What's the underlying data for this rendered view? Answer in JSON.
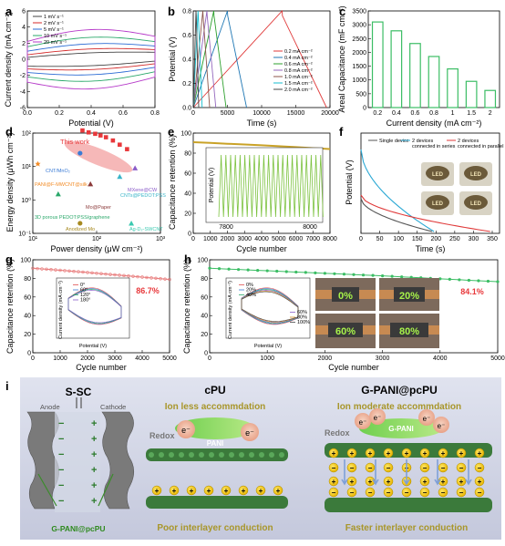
{
  "panels": {
    "a": {
      "label": "a",
      "xlabel": "Potential (V)",
      "ylabel": "Current density (mA cm⁻²)",
      "xticks": [
        "0.0",
        "0.2",
        "0.4",
        "0.6",
        "0.8"
      ],
      "yticks": [
        "-6",
        "-4",
        "-2",
        "0",
        "2",
        "4",
        "6"
      ],
      "legend": [
        "1 mV s⁻¹",
        "2 mV s⁻¹",
        "5 mV s⁻¹",
        "10 mV s⁻¹",
        "20 mV s⁻¹"
      ]
    },
    "b": {
      "label": "b",
      "xlabel": "Time (s)",
      "ylabel": "Potential (V)",
      "xticks": [
        "0",
        "5000",
        "10000",
        "15000",
        "20000"
      ],
      "yticks": [
        "0.0",
        "0.2",
        "0.4",
        "0.6",
        "0.8"
      ],
      "legend": [
        "0.2 mA cm⁻²",
        "0.4 mA cm⁻²",
        "0.6 mA cm⁻²",
        "0.8 mA cm⁻²",
        "1.0 mA cm⁻²",
        "1.5 mA cm⁻²",
        "2.0 mA cm⁻²"
      ]
    },
    "c": {
      "label": "c",
      "xlabel": "Current density (mA cm⁻²)",
      "ylabel": "Areal Capacitance (mF cm⁻²)",
      "xticks": [
        "0.2",
        "0.4",
        "0.6",
        "0.8",
        "1",
        "1.5",
        "2"
      ],
      "yticks": [
        "0",
        "500",
        "1000",
        "1500",
        "2000",
        "2500",
        "3000",
        "3500"
      ]
    },
    "d": {
      "label": "d",
      "xlabel": "Power density (μW cm⁻²)",
      "ylabel": "Energy density (μWh cm⁻²)",
      "xticks": [
        "10¹",
        "10²",
        "10³"
      ],
      "yticks": [
        "10⁻¹",
        "10⁰",
        "10¹",
        "10²"
      ],
      "highlight": "This work",
      "refs": [
        "CNT/MnO₂",
        "PANI@F-MWCNT@silk",
        "MXene@CW",
        "Mo@Paper",
        "CNTs@PEDOT:PSS",
        "3D porous PEDOT:PSS/graphene",
        "Anodized Mo",
        "Ag-D₂-SWCNT"
      ]
    },
    "e": {
      "label": "e",
      "xlabel": "Cycle number",
      "ylabel": "Capacitance retention (%)",
      "xticks": [
        "0",
        "1000",
        "2000",
        "3000",
        "4000",
        "5000",
        "6000",
        "7000",
        "8000"
      ],
      "yticks": [
        "0",
        "20",
        "40",
        "60",
        "80",
        "100"
      ],
      "inset_ylabel": "Potential (V)",
      "inset_xticks": [
        "7800",
        "8000"
      ]
    },
    "f": {
      "label": "f",
      "xlabel": "Time (s)",
      "ylabel": "Potential (V)",
      "xticks": [
        "0",
        "50",
        "100",
        "150",
        "200",
        "250",
        "300",
        "350"
      ],
      "legend": [
        "Single device",
        "2 devices connected in series",
        "2 devices connected in parallel"
      ]
    },
    "g": {
      "label": "g",
      "xlabel": "Cycle number",
      "ylabel": "Capacitance retention (%)",
      "xticks": [
        "0",
        "1000",
        "2000",
        "3000",
        "4000",
        "5000"
      ],
      "yticks": [
        "0",
        "20",
        "40",
        "60",
        "80",
        "100"
      ],
      "retention": "86.7%",
      "inset_xlabel": "Potential (V)",
      "inset_ylabel": "Current density (mA cm⁻²)",
      "inset_legend": [
        "0°",
        "60°",
        "120°",
        "180°"
      ]
    },
    "h": {
      "label": "h",
      "xlabel": "Cycle number",
      "ylabel": "Capacitance retention (%)",
      "xticks": [
        "0",
        "1000",
        "2000",
        "3000",
        "4000",
        "5000"
      ],
      "yticks": [
        "0",
        "20",
        "40",
        "60",
        "80",
        "100"
      ],
      "retention": "84.1%",
      "inset_xlabel": "Potential (V)",
      "inset_ylabel": "Current density (mA cm⁻²)",
      "inset_legend": [
        "0%",
        "20%",
        "40%",
        "60%",
        "80%",
        "100%"
      ],
      "photo_labels": [
        "0%",
        "20%",
        "60%",
        "80%"
      ]
    },
    "i": {
      "label": "i",
      "ssc_title": "S-SC",
      "anode": "Anode",
      "cathode": "Cathode",
      "electrode": "G-PANI@pcPU",
      "cpu_title": "cPU",
      "cpu_sub": "Ion less accommdation",
      "cpu_bottom": "Poor interlayer conduction",
      "gp_title": "G-PANI@pcPU",
      "gp_sub": "Ion moderate accommdation",
      "gp_bottom": "Faster interlayer conduction",
      "redox": "Redox",
      "pani": "PANI",
      "gpani": "G-PANI",
      "electron": "e⁻"
    }
  },
  "chart_data": [
    {
      "type": "line",
      "title": "",
      "xlabel": "Potential (V)",
      "ylabel": "Current density (mA cm⁻²)",
      "xlim": [
        0,
        0.8
      ],
      "ylim": [
        -6,
        6
      ],
      "series": [
        {
          "name": "1 mV s⁻¹",
          "amp": 1.0
        },
        {
          "name": "2 mV s⁻¹",
          "amp": 1.6
        },
        {
          "name": "5 mV s⁻¹",
          "amp": 2.4
        },
        {
          "name": "10 mV s⁻¹",
          "amp": 3.4
        },
        {
          "name": "20 mV s⁻¹",
          "amp": 4.6
        }
      ]
    },
    {
      "type": "line",
      "xlabel": "Time (s)",
      "ylabel": "Potential (V)",
      "xlim": [
        0,
        20000
      ],
      "ylim": [
        0,
        0.8
      ],
      "series": [
        {
          "name": "0.2 mA cm⁻²",
          "charge_end": 13000,
          "discharge_end": 19500
        },
        {
          "name": "0.4 mA cm⁻²",
          "charge_end": 5000,
          "discharge_end": 7800
        },
        {
          "name": "0.6 mA cm⁻²",
          "charge_end": 3000,
          "discharge_end": 4800
        },
        {
          "name": "0.8 mA cm⁻²",
          "charge_end": 2000,
          "discharge_end": 3300
        },
        {
          "name": "1.0 mA cm⁻²",
          "charge_end": 1400,
          "discharge_end": 2400
        },
        {
          "name": "1.5 mA cm⁻²",
          "charge_end": 700,
          "discharge_end": 1300
        },
        {
          "name": "2.0 mA cm⁻²",
          "charge_end": 400,
          "discharge_end": 800
        }
      ]
    },
    {
      "type": "bar",
      "xlabel": "Current density (mA cm⁻²)",
      "ylabel": "Areal Capacitance (mF cm⁻²)",
      "categories": [
        "0.2",
        "0.4",
        "0.6",
        "0.8",
        "1",
        "1.5",
        "2"
      ],
      "values": [
        3100,
        2780,
        2320,
        1850,
        1400,
        950,
        620
      ],
      "ylim": [
        0,
        3500
      ]
    },
    {
      "type": "scatter",
      "xlabel": "Power density (μW cm⁻²)",
      "ylabel": "Energy density (μWh cm⁻²)",
      "xscale": "log",
      "yscale": "log",
      "xlim": [
        10,
        1000
      ],
      "ylim": [
        0.1,
        100
      ],
      "this_work": [
        [
          60,
          120
        ],
        [
          75,
          105
        ],
        [
          95,
          95
        ],
        [
          115,
          85
        ],
        [
          140,
          75
        ],
        [
          180,
          60
        ],
        [
          230,
          45
        ],
        [
          300,
          33
        ]
      ],
      "refs": [
        {
          "name": "CNT/MnO₂",
          "x": 55,
          "y": 25
        },
        {
          "name": "PANI@F-MWCNT@silk",
          "x": 12,
          "y": 12
        },
        {
          "name": "MXene@CW",
          "x": 400,
          "y": 9
        },
        {
          "name": "Mo@Paper",
          "x": 80,
          "y": 3
        },
        {
          "name": "CNTs@PEDOT:PSS",
          "x": 230,
          "y": 5
        },
        {
          "name": "3D porous PEDOT:PSS/graphene",
          "x": 25,
          "y": 1.5
        },
        {
          "name": "Anodized Mo",
          "x": 55,
          "y": 0.2
        },
        {
          "name": "Ag-D₂-SWCNT",
          "x": 350,
          "y": 0.2
        }
      ]
    },
    {
      "type": "line",
      "xlabel": "Cycle number",
      "ylabel": "Capacitance retention (%)",
      "xlim": [
        0,
        8000
      ],
      "ylim": [
        0,
        110
      ],
      "x": [
        0,
        1000,
        2000,
        3000,
        4000,
        5000,
        6000,
        7000,
        8000
      ],
      "values": [
        100,
        99.2,
        98.3,
        97.5,
        96.6,
        95.6,
        94.6,
        93.5,
        92.5
      ]
    },
    {
      "type": "line",
      "xlabel": "Time (s)",
      "ylabel": "Potential (V)",
      "xlim": [
        0,
        370
      ],
      "series": [
        {
          "name": "Single device",
          "end": 190
        },
        {
          "name": "2 devices connected in series",
          "end": 195
        },
        {
          "name": "2 devices connected in parallel",
          "end": 345
        }
      ]
    },
    {
      "type": "line",
      "xlabel": "Cycle number",
      "ylabel": "Capacitance retention (%)",
      "xlim": [
        0,
        5000
      ],
      "ylim": [
        0,
        110
      ],
      "x": [
        0,
        1000,
        2000,
        3000,
        4000,
        5000
      ],
      "values": [
        100,
        97.6,
        95,
        92.2,
        89.5,
        86.7
      ]
    },
    {
      "type": "line",
      "xlabel": "Cycle number",
      "ylabel": "Capacitance retention (%)",
      "xlim": [
        0,
        5000
      ],
      "ylim": [
        0,
        110
      ],
      "x": [
        0,
        1000,
        2000,
        3000,
        4000,
        5000
      ],
      "values": [
        100,
        97,
        94,
        91,
        87.5,
        84.1
      ]
    }
  ],
  "colors": {
    "a": [
      "#444444",
      "#d42a2a",
      "#2a6ad4",
      "#2aa86a",
      "#b63ac9"
    ],
    "b": [
      "#e03a3a",
      "#1f77b4",
      "#2ca02c",
      "#9467bd",
      "#8c564b",
      "#17becf",
      "#444444"
    ],
    "bar": "#3bbd64",
    "this_work": "#e8383b",
    "e_line": "#c9a227",
    "inset_green": "#7cc23f",
    "f": [
      "#555555",
      "#2aa8d4",
      "#e03a3a"
    ],
    "g_line": "#e87a7a",
    "h_line": "#3bbd64",
    "highlight_red": "#e8383b",
    "panel_bg": "#d9dcea",
    "gold": "#c9b23c"
  }
}
